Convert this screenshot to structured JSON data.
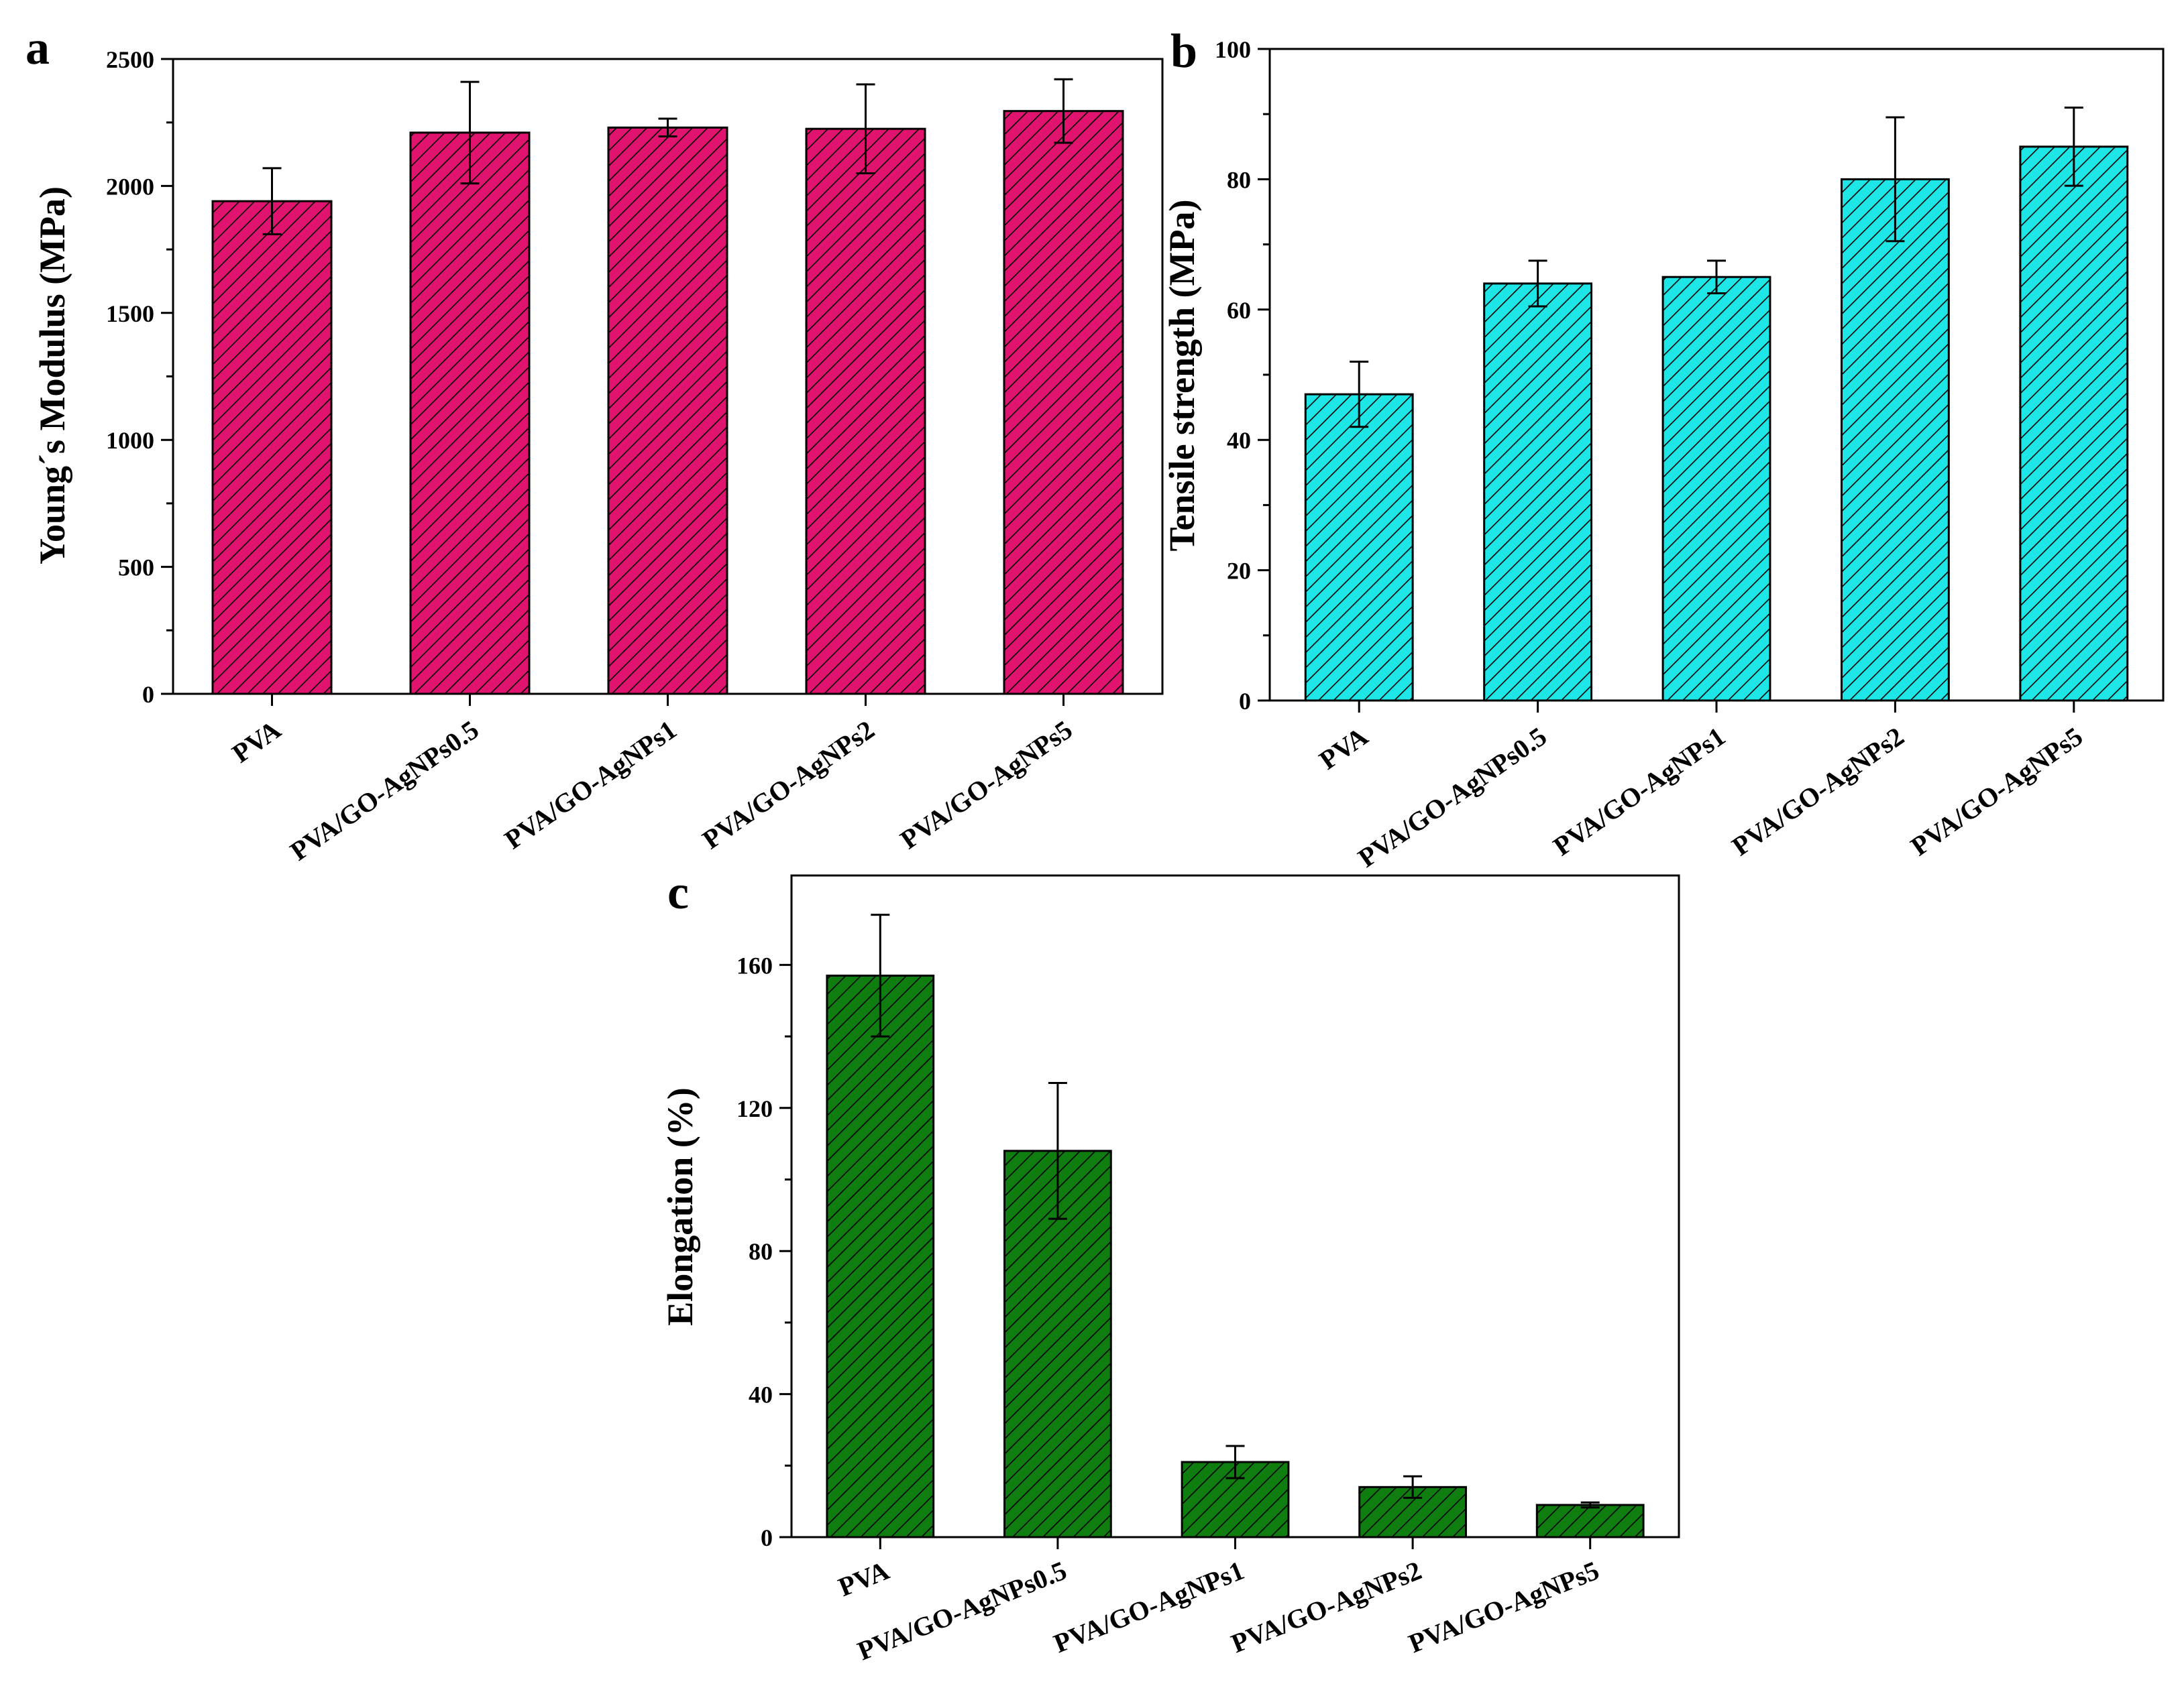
{
  "chart_data": [
    {
      "panel": "a",
      "type": "bar",
      "ylabel": "Young´s Modulus (MPa)",
      "xlabel": "",
      "categories": [
        "PVA",
        "PVA/GO-AgNPs0.5",
        "PVA/GO-AgNPs1",
        "PVA/GO-AgNPs2",
        "PVA/GO-AgNPs5"
      ],
      "values": [
        1940,
        2210,
        2230,
        2225,
        2295
      ],
      "errors": [
        130,
        200,
        35,
        175,
        125
      ],
      "ylim": [
        0,
        2500
      ],
      "yticks": [
        0,
        500,
        1000,
        1500,
        2000,
        2500
      ],
      "color": "#e0146e",
      "hatch": "diagonal",
      "grid": false
    },
    {
      "panel": "b",
      "type": "bar",
      "ylabel": "Tensile strength (MPa)",
      "xlabel": "",
      "categories": [
        "PVA",
        "PVA/GO-AgNPs0.5",
        "PVA/GO-AgNPs1",
        "PVA/GO-AgNPs2",
        "PVA/GO-AgNPs5"
      ],
      "values": [
        47,
        64,
        65,
        80,
        85
      ],
      "errors": [
        5,
        3.5,
        2.5,
        9.5,
        6
      ],
      "ylim": [
        0,
        100
      ],
      "yticks": [
        0,
        20,
        40,
        60,
        80,
        100
      ],
      "color": "#1ee6e6",
      "hatch": "diagonal",
      "grid": false
    },
    {
      "panel": "c",
      "type": "bar",
      "ylabel": "Elongation (%)",
      "xlabel": "",
      "categories": [
        "PVA",
        "PVA/GO-AgNPs0.5",
        "PVA/GO-AgNPs1",
        "PVA/GO-AgNPs2",
        "PVA/GO-AgNPs5"
      ],
      "values": [
        157,
        108,
        21,
        14,
        9
      ],
      "errors": [
        17,
        19,
        4.5,
        3,
        0.7
      ],
      "ylim": [
        0,
        185
      ],
      "yticks": [
        0,
        40,
        80,
        120,
        160
      ],
      "color": "#0f7d0f",
      "hatch": "diagonal",
      "grid": false
    }
  ]
}
